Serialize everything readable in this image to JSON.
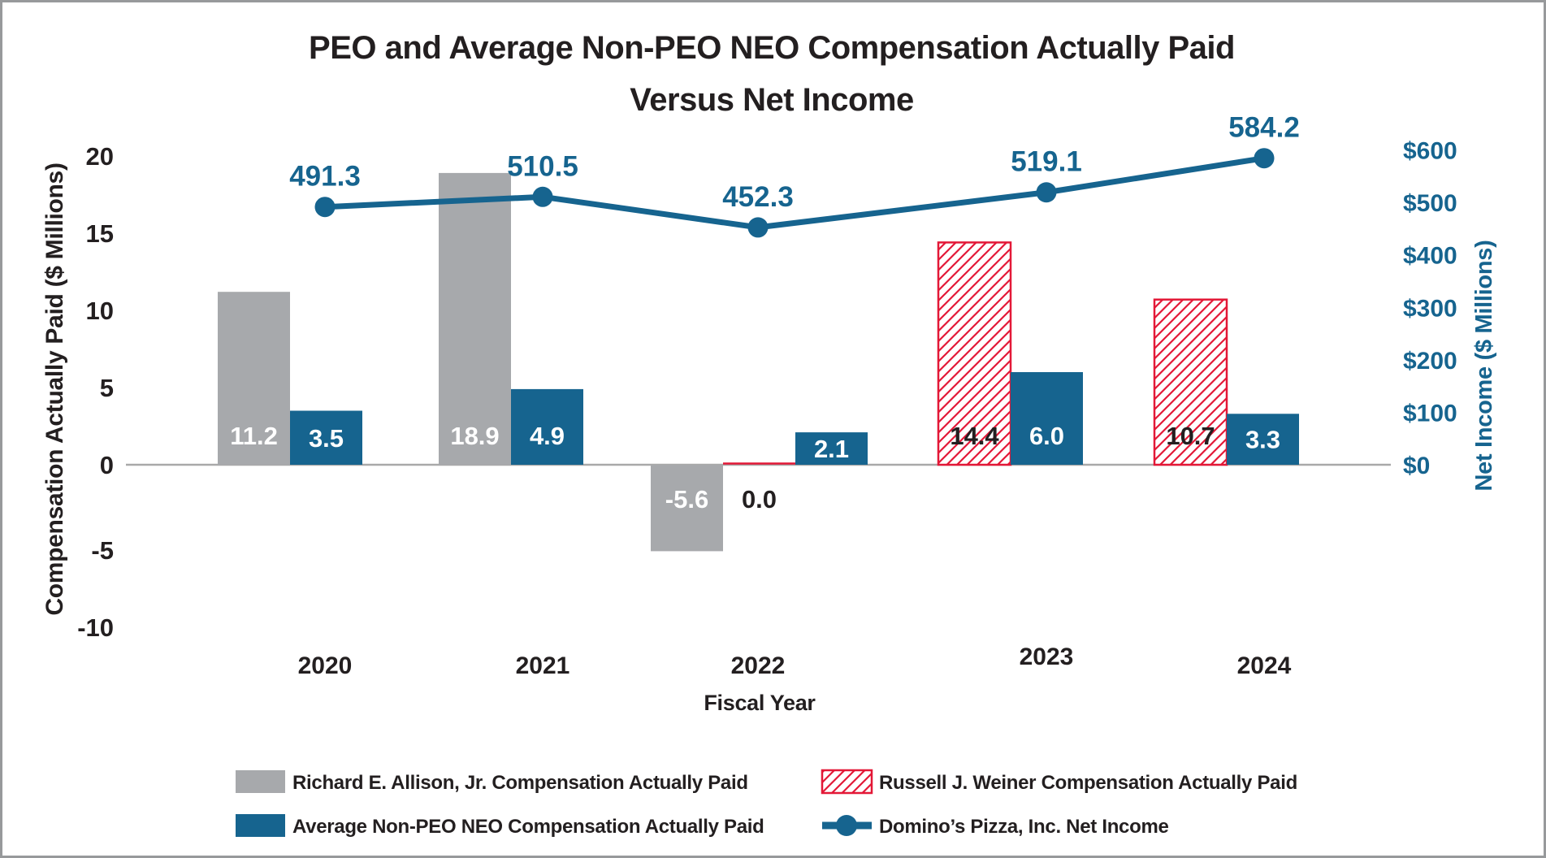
{
  "frame": {
    "border_color": "#97999b",
    "background": "#ffffff"
  },
  "title": {
    "line1": "PEO and Average Non-PEO NEO Compensation Actually Paid",
    "line2": "Versus Net Income"
  },
  "axes": {
    "left": {
      "label": "Compensation Actually Paid ($ Millions)",
      "ticks": [
        20,
        15,
        10,
        5,
        0,
        -5,
        -10
      ]
    },
    "right": {
      "label": "Net Income ($ Millions)",
      "tick_prefix": "$",
      "ticks": [
        600,
        500,
        400,
        300,
        200,
        100,
        0
      ]
    },
    "x": {
      "label": "Fiscal Year",
      "categories": [
        "2020",
        "2021",
        "2022",
        "2023",
        "2024"
      ]
    }
  },
  "colors": {
    "gray_bar": "#a7a9ac",
    "blue_bar": "#16648f",
    "red_hatch": "#e31837",
    "line_blue": "#16648f",
    "zero_line": "#a9a9a9",
    "text_black": "#231f20",
    "white": "#ffffff"
  },
  "chart_data": {
    "type": "combo-bar-line",
    "title": "PEO and Average Non-PEO NEO Compensation Actually Paid Versus Net Income",
    "categories": [
      "2020",
      "2021",
      "2022",
      "2023",
      "2024"
    ],
    "series": [
      {
        "key": "allison",
        "name": "Richard E. Allison, Jr. Compensation Actually Paid",
        "type": "bar",
        "style": "solid-gray",
        "axis": "left",
        "values": [
          11.2,
          18.9,
          -5.6,
          null,
          null
        ]
      },
      {
        "key": "weiner",
        "name": "Russell J. Weiner Compensation Actually Paid",
        "type": "bar",
        "style": "hatched-red",
        "axis": "left",
        "values": [
          null,
          null,
          0.0,
          14.4,
          10.7
        ]
      },
      {
        "key": "nonpeo",
        "name": "Average Non-PEO NEO Compensation Actually Paid",
        "type": "bar",
        "style": "solid-blue",
        "axis": "left",
        "values": [
          3.5,
          4.9,
          2.1,
          6.0,
          3.3
        ]
      },
      {
        "key": "netincome",
        "name": "Domino’s Pizza, Inc. Net Income",
        "type": "line",
        "style": "line-blue",
        "axis": "right",
        "values": [
          491.3,
          510.5,
          452.3,
          519.1,
          584.2
        ]
      }
    ],
    "xlabel": "Fiscal Year",
    "ylabel_left": "Compensation Actually Paid ($ Millions)",
    "ylabel_right": "Net Income ($ Millions)",
    "left_axis_range": [
      -10,
      20
    ],
    "right_axis_range": [
      0,
      600
    ],
    "grid": "zero-line-only",
    "legend_position": "bottom"
  },
  "legend": {
    "items": [
      {
        "key": "allison",
        "swatch": "solid-gray",
        "label": "Richard E. Allison, Jr. Compensation Actually Paid"
      },
      {
        "key": "weiner",
        "swatch": "hatched-red",
        "label": "Russell J. Weiner Compensation Actually Paid"
      },
      {
        "key": "nonpeo",
        "swatch": "solid-blue",
        "label": "Average Non-PEO NEO Compensation Actually Paid"
      },
      {
        "key": "netincome",
        "swatch": "line-dot",
        "label": "Domino’s Pizza, Inc. Net Income"
      }
    ]
  }
}
